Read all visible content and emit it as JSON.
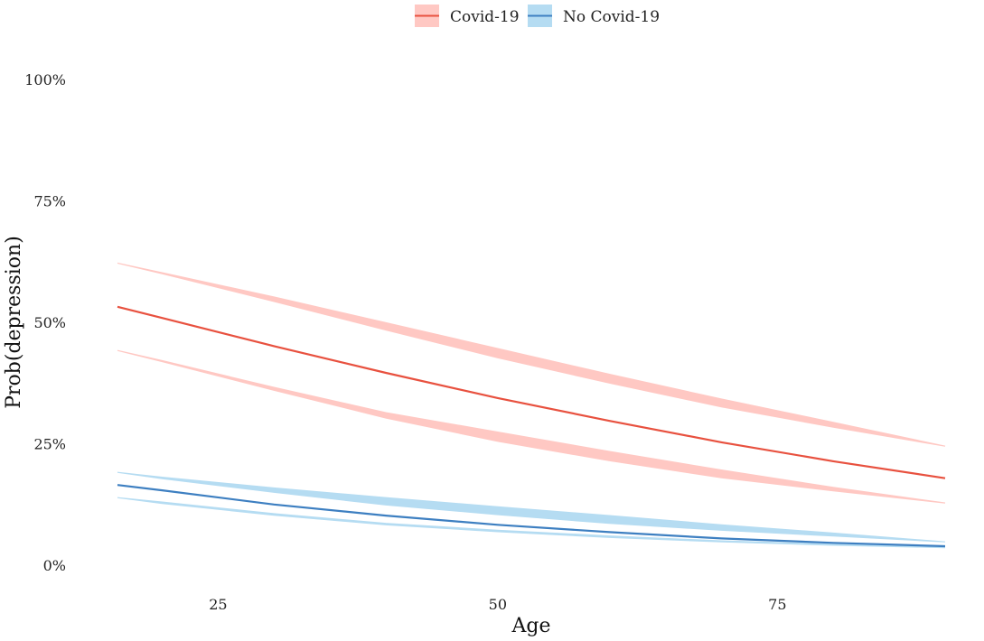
{
  "chart_data": {
    "type": "line",
    "xlabel": "Age",
    "ylabel": "Prob(depression)",
    "xlim": [
      16,
      90
    ],
    "ylim": [
      0,
      100
    ],
    "x_ticks": [
      25,
      50,
      75
    ],
    "x_tick_labels": [
      "25",
      "50",
      "75"
    ],
    "y_ticks": [
      0,
      25,
      50,
      75,
      100
    ],
    "y_tick_labels": [
      "0%",
      "25%",
      "50%",
      "75%",
      "100%"
    ],
    "grid": false,
    "legend_position": "top",
    "series": [
      {
        "name": "Covid-19",
        "color": "#e8513f",
        "band_color": "#ffc8c3",
        "x": [
          16,
          20,
          30,
          40,
          50,
          60,
          70,
          80,
          90
        ],
        "y": [
          53.2,
          50.9,
          45.1,
          39.6,
          34.4,
          29.7,
          25.3,
          21.4,
          17.9
        ],
        "upper_a": [
          62.2,
          60.2,
          55.2,
          49.9,
          44.6,
          39.3,
          34.2,
          29.4,
          24.5
        ],
        "upper_b": [
          62.2,
          60.0,
          54.3,
          48.4,
          42.7,
          37.5,
          32.6,
          28.4,
          24.5
        ],
        "lower_a": [
          44.2,
          42.1,
          36.6,
          31.4,
          27.4,
          23.4,
          19.6,
          16.0,
          12.8
        ],
        "lower_b": [
          44.2,
          41.9,
          36.0,
          30.3,
          25.5,
          21.5,
          18.0,
          15.3,
          12.8
        ]
      },
      {
        "name": "No Covid-19",
        "color": "#3d7fc1",
        "band_color": "#b5dcf2",
        "x": [
          16,
          20,
          30,
          40,
          50,
          60,
          70,
          80,
          90
        ],
        "y": [
          16.5,
          15.4,
          12.5,
          10.2,
          8.3,
          6.8,
          5.5,
          4.6,
          3.9
        ],
        "upper_a": [
          19.1,
          18.1,
          15.9,
          13.9,
          12.0,
          10.2,
          8.3,
          6.6,
          4.8
        ],
        "upper_b": [
          19.1,
          17.8,
          15.0,
          12.4,
          10.4,
          8.6,
          7.2,
          6.0,
          4.8
        ],
        "lower_a": [
          13.9,
          13.0,
          10.6,
          8.6,
          7.2,
          6.0,
          5.0,
          4.3,
          3.6
        ],
        "lower_b": [
          13.9,
          12.7,
          10.3,
          8.3,
          6.9,
          5.7,
          4.8,
          4.1,
          3.6
        ]
      }
    ]
  }
}
